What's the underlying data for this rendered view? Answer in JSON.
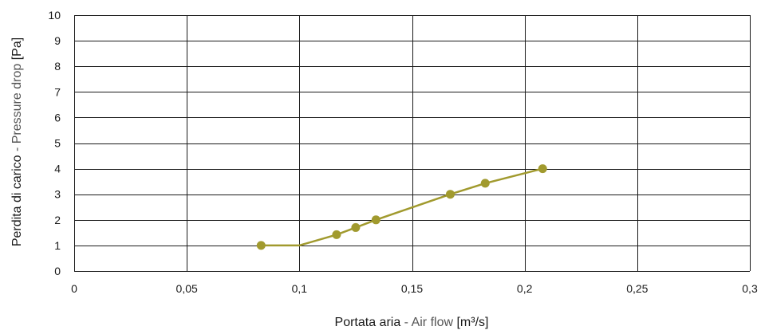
{
  "chart_data": {
    "type": "line",
    "x": [
      0.083,
      0.1,
      0.1165,
      0.125,
      0.134,
      0.167,
      0.1825,
      0.208
    ],
    "series": [
      {
        "values": [
          1,
          1,
          1.42,
          1.7,
          2.0,
          3.0,
          3.43,
          4.0
        ],
        "markers": [
          true,
          false,
          true,
          true,
          true,
          true,
          true,
          true
        ],
        "color": "#a19a2e"
      }
    ],
    "xlim": [
      0,
      0.3
    ],
    "ylim": [
      0,
      10
    ],
    "x_ticks": [
      "0",
      "0,05",
      "0,1",
      "0,15",
      "0,2",
      "0,25",
      "0,3"
    ],
    "y_ticks": [
      "0",
      "1",
      "2",
      "3",
      "4",
      "5",
      "6",
      "7",
      "8",
      "9",
      "10"
    ],
    "xlabel": {
      "main": "Portata aria",
      "sep": " - ",
      "sub": "Air flow",
      "unit": "[m³/s]"
    },
    "ylabel": {
      "main": "Perdita di carico",
      "sep": " - ",
      "sub": "Pressure drop",
      "unit": "[Pa]"
    },
    "grid": true
  }
}
